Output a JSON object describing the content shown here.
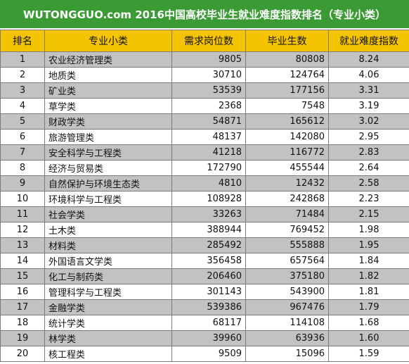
{
  "title": "WUTONGGUO.com 2016中国高校毕业生就业难度指数排名（专业小类）",
  "colors": {
    "title_bg": "#3a9b34",
    "header_bg": "#f5c400",
    "shade_row": "#c2c2c2"
  },
  "headers": [
    "排名",
    "专业小类",
    "需求岗位数",
    "毕业生数",
    "就业难度指数"
  ],
  "rows": [
    [
      "1",
      "农业经济管理类",
      "9805",
      "80808",
      "8.24"
    ],
    [
      "2",
      "地质类",
      "30710",
      "124764",
      "4.06"
    ],
    [
      "3",
      "矿业类",
      "53539",
      "177156",
      "3.31"
    ],
    [
      "4",
      "草学类",
      "2368",
      "7548",
      "3.19"
    ],
    [
      "5",
      "财政学类",
      "54871",
      "165612",
      "3.02"
    ],
    [
      "6",
      "旅游管理类",
      "48137",
      "142080",
      "2.95"
    ],
    [
      "7",
      "安全科学与工程类",
      "41218",
      "116772",
      "2.83"
    ],
    [
      "8",
      "经济与贸易类",
      "172790",
      "455544",
      "2.64"
    ],
    [
      "9",
      "自然保护与环境生态类",
      "4810",
      "12432",
      "2.58"
    ],
    [
      "10",
      "环境科学与工程类",
      "108928",
      "242868",
      "2.23"
    ],
    [
      "11",
      "社会学类",
      "33263",
      "71484",
      "2.15"
    ],
    [
      "12",
      "土木类",
      "388944",
      "769452",
      "1.98"
    ],
    [
      "13",
      "材料类",
      "285492",
      "555888",
      "1.95"
    ],
    [
      "14",
      "外国语言文学类",
      "356458",
      "657564",
      "1.84"
    ],
    [
      "15",
      "化工与制药类",
      "206460",
      "375180",
      "1.82"
    ],
    [
      "16",
      "管理科学与工程类",
      "301143",
      "543900",
      "1.81"
    ],
    [
      "17",
      "金融学类",
      "539386",
      "967476",
      "1.79"
    ],
    [
      "18",
      "统计学类",
      "68117",
      "114108",
      "1.68"
    ],
    [
      "19",
      "林学类",
      "39960",
      "63936",
      "1.60"
    ],
    [
      "20",
      "核工程类",
      "9509",
      "15096",
      "1.59"
    ]
  ]
}
